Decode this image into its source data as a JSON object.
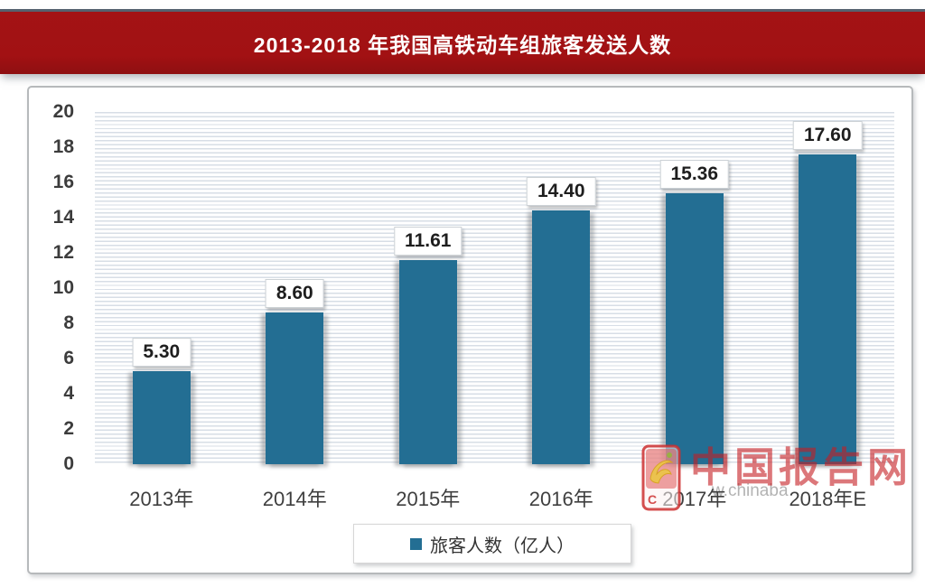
{
  "banner": {
    "title": "2013-2018 年我国高铁动车组旅客发送人数",
    "background_color": "#a21113",
    "text_color": "#ffffff"
  },
  "chart_data": {
    "type": "bar",
    "title": "2013-2018 年我国高铁动车组旅客发送人数",
    "categories": [
      "2013年",
      "2014年",
      "2015年",
      "2016年",
      "2017年",
      "2018年E"
    ],
    "series": [
      {
        "name": "旅客人数（亿人）",
        "values": [
          5.3,
          8.6,
          11.61,
          14.4,
          15.36,
          17.6
        ],
        "value_labels": [
          "5.30",
          "8.60",
          "11.61",
          "14.40",
          "15.36",
          "17.60"
        ]
      }
    ],
    "xlabel": "",
    "ylabel": "",
    "ylim": [
      0,
      20
    ],
    "ytick_step": 2,
    "yticks": [
      0,
      2,
      4,
      6,
      8,
      10,
      12,
      14,
      16,
      18,
      20
    ],
    "bar_color": "#236e93",
    "grid": "fine horizontal stripes",
    "legend_position": "bottom",
    "data_labels": "boxed above bars"
  },
  "legend": {
    "marker_color": "#236e93",
    "label": "旅客人数（亿人）"
  },
  "watermark": {
    "brand": "中国报告网",
    "partial_url": "w.chinaba",
    "brand_color": "#c41d21"
  }
}
